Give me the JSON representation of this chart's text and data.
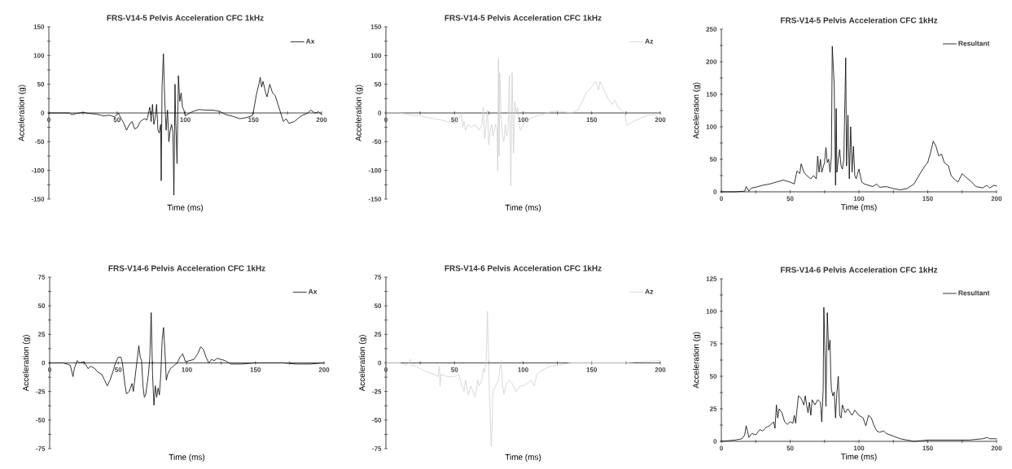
{
  "chart_data": [
    {
      "type": "line",
      "title": "FRS-V14-5 Pelvis Acceleration  CFC 1kHz",
      "xlabel": "Time (ms)",
      "ylabel": "Acceleration (g)",
      "legend": "top right",
      "xlim": [
        0,
        200
      ],
      "xticks": [
        0,
        {
          "value": 25,
          "label": null
        },
        50,
        {
          "value": 75,
          "label": null
        },
        100,
        {
          "value": 125,
          "label": null
        },
        150,
        {
          "value": 175,
          "label": null
        },
        200
      ],
      "ylim": [
        -150,
        150
      ],
      "yticks": [
        -150,
        {
          "value": -125,
          "label": null
        },
        -100,
        {
          "value": -75,
          "label": null
        },
        -50,
        {
          "value": -25,
          "label": null
        },
        0,
        {
          "value": 25,
          "label": null
        },
        50,
        {
          "value": 75,
          "label": null
        },
        100,
        {
          "value": 125,
          "label": null
        },
        150
      ],
      "series": [
        {
          "name": "Ax",
          "color": "#000000",
          "x": [
            0,
            5,
            10,
            15,
            17,
            20,
            25,
            30,
            35,
            40,
            45,
            48,
            50,
            51,
            53,
            55,
            57,
            59,
            61,
            63,
            65,
            67,
            70,
            72,
            74,
            75,
            76,
            77,
            78,
            79,
            80,
            81,
            82,
            82.4,
            83,
            84,
            85,
            86,
            87,
            88,
            89,
            90,
            91,
            91.7,
            92.5,
            93,
            94,
            95,
            96,
            97,
            98,
            99,
            100,
            102,
            105,
            110,
            115,
            120,
            125,
            130,
            135,
            140,
            145,
            149,
            150,
            152,
            154,
            155,
            156,
            157,
            159,
            160,
            162,
            164,
            166,
            168,
            170,
            172,
            174,
            176,
            180,
            185,
            190,
            192,
            195,
            198,
            200
          ],
          "values": [
            0,
            0,
            0,
            0,
            -3,
            -1,
            1,
            -1,
            -2,
            -5,
            -4,
            -7,
            -3,
            0,
            -10,
            -18,
            -30,
            -20,
            -15,
            -28,
            -25,
            -15,
            -10,
            -12,
            10,
            -15,
            15,
            -20,
            -8,
            15,
            -30,
            -35,
            -20,
            -118,
            45,
            103,
            20,
            -30,
            5,
            -50,
            -30,
            -20,
            -35,
            -143,
            50,
            -10,
            -88,
            65,
            20,
            35,
            10,
            5,
            -5,
            -2,
            2,
            6,
            5,
            5,
            3,
            -3,
            -6,
            -10,
            -8,
            -5,
            2,
            30,
            50,
            62,
            45,
            55,
            35,
            28,
            50,
            35,
            30,
            15,
            0,
            -15,
            -10,
            -18,
            -15,
            -5,
            0,
            5,
            0,
            2,
            -3
          ]
        }
      ]
    },
    {
      "type": "line",
      "title": "FRS-V14-5 Pelvis Acceleration  CFC 1kHz",
      "xlabel": "Time (ms)",
      "ylabel": "Acceleration (g)",
      "legend": "top right",
      "xlim": [
        0,
        200
      ],
      "xticks": [
        0,
        {
          "value": 25,
          "label": null
        },
        50,
        {
          "value": 75,
          "label": null
        },
        100,
        {
          "value": 125,
          "label": null
        },
        150,
        {
          "value": 175,
          "label": null
        },
        200
      ],
      "ylim": [
        -150,
        150
      ],
      "yticks": [
        -150,
        {
          "value": -125,
          "label": null
        },
        -100,
        {
          "value": -75,
          "label": null
        },
        -50,
        {
          "value": -25,
          "label": null
        },
        0,
        {
          "value": 25,
          "label": null
        },
        50,
        {
          "value": 75,
          "label": null
        },
        100,
        {
          "value": 125,
          "label": null
        },
        150
      ],
      "series": [
        {
          "name": "Az",
          "color": "#cfcfcf",
          "x": [
            0,
            10,
            15,
            20,
            25,
            30,
            35,
            40,
            45,
            50,
            53,
            55,
            56,
            57,
            58,
            60,
            62,
            65,
            68,
            70,
            71,
            72,
            73,
            74,
            75,
            76,
            77,
            78,
            79,
            80,
            81,
            81.5,
            82,
            82.5,
            83,
            84,
            85,
            86,
            87,
            88,
            89,
            90,
            91,
            92,
            93,
            94,
            95,
            96,
            97,
            98,
            100,
            105,
            110,
            115,
            120,
            125,
            130,
            135,
            140,
            143,
            146,
            150,
            153,
            155,
            156,
            158,
            160,
            162,
            165,
            167,
            169,
            172,
            174,
            175,
            176,
            180,
            185,
            190,
            195,
            200
          ],
          "values": [
            0,
            0,
            -2,
            -5,
            -5,
            -8,
            -10,
            -12,
            -15,
            -18,
            -10,
            -3,
            -25,
            -15,
            -30,
            -20,
            -25,
            -20,
            -30,
            -20,
            10,
            -45,
            -20,
            5,
            -55,
            -30,
            -20,
            -40,
            -30,
            -20,
            -30,
            -100,
            95,
            -75,
            70,
            -10,
            -40,
            -50,
            -20,
            -40,
            -30,
            65,
            -127,
            70,
            -70,
            20,
            0,
            10,
            -20,
            -30,
            -20,
            -10,
            -5,
            -2,
            2,
            4,
            2,
            0,
            5,
            20,
            35,
            45,
            55,
            40,
            55,
            45,
            35,
            25,
            15,
            22,
            10,
            5,
            0,
            -15,
            -22,
            -15,
            -10,
            -5,
            -3,
            -8
          ]
        }
      ]
    },
    {
      "type": "line",
      "title": "FRS-V14-5 Pelvis Acceleration  CFC 1kHz",
      "xlabel": "Time (ms)",
      "ylabel": "Acceleration (g)",
      "legend": "top right",
      "xlim": [
        0,
        200
      ],
      "xticks": [
        0,
        {
          "value": 25,
          "label": null
        },
        50,
        {
          "value": 75,
          "label": null
        },
        100,
        {
          "value": 125,
          "label": null
        },
        150,
        {
          "value": 175,
          "label": null
        },
        200
      ],
      "ylim": [
        0,
        250
      ],
      "yticks": [
        0,
        {
          "value": 25,
          "label": null
        },
        50,
        {
          "value": 75,
          "label": null
        },
        100,
        {
          "value": 125,
          "label": null
        },
        150,
        {
          "value": 175,
          "label": null
        },
        200,
        {
          "value": 225,
          "label": null
        },
        250
      ],
      "series": [
        {
          "name": "Resultant",
          "color": "#000000",
          "x": [
            0,
            10,
            17,
            18,
            19,
            20,
            22,
            25,
            30,
            35,
            40,
            45,
            50,
            53,
            55,
            57,
            58,
            60,
            62,
            65,
            67,
            69,
            70,
            71,
            72,
            73,
            75,
            76,
            77,
            78,
            79,
            80,
            80.6,
            82,
            83,
            83.5,
            84,
            85,
            86,
            87,
            88,
            89,
            90.4,
            91,
            92,
            93,
            94,
            95,
            96,
            97,
            98,
            100,
            102,
            104,
            110,
            113,
            115,
            120,
            125,
            130,
            135,
            140,
            145,
            148,
            150,
            152,
            154,
            156,
            158,
            160,
            162,
            165,
            167,
            170,
            172,
            175,
            178,
            182,
            185,
            190,
            193,
            195,
            198,
            200
          ],
          "values": [
            0,
            0,
            1,
            8,
            5,
            1,
            6,
            7,
            10,
            12,
            15,
            18,
            15,
            12,
            32,
            28,
            43,
            30,
            25,
            20,
            25,
            20,
            55,
            30,
            50,
            30,
            45,
            68,
            45,
            50,
            30,
            55,
            224,
            165,
            10,
            128,
            30,
            50,
            65,
            40,
            35,
            50,
            206,
            40,
            118,
            20,
            100,
            30,
            70,
            25,
            20,
            35,
            15,
            12,
            8,
            12,
            7,
            8,
            5,
            3,
            5,
            12,
            30,
            40,
            45,
            60,
            78,
            70,
            55,
            58,
            45,
            40,
            25,
            18,
            15,
            28,
            22,
            15,
            8,
            6,
            10,
            6,
            10,
            9
          ]
        }
      ]
    },
    {
      "type": "line",
      "title": "FRS-V14-6 Pelvis Acceleration  CFC 1kHz",
      "xlabel": "Time (ms)",
      "ylabel": "Acceleration (g)",
      "legend": "top right",
      "xlim": [
        0,
        200
      ],
      "xticks": [
        0,
        {
          "value": 25,
          "label": null
        },
        50,
        {
          "value": 75,
          "label": null
        },
        100,
        {
          "value": 125,
          "label": null
        },
        150,
        {
          "value": 175,
          "label": null
        },
        200
      ],
      "ylim": [
        -75,
        75
      ],
      "yticks": [
        -75,
        {
          "value": -62.5,
          "label": null
        },
        -50,
        {
          "value": -37.5,
          "label": null
        },
        -25,
        {
          "value": -12.5,
          "label": null
        },
        0,
        {
          "value": 12.5,
          "label": null
        },
        25,
        {
          "value": 37.5,
          "label": null
        },
        50,
        {
          "value": 62.5,
          "label": null
        },
        75
      ],
      "series": [
        {
          "name": "Ax",
          "color": "#000000",
          "x": [
            0,
            5,
            10,
            15,
            17,
            18,
            20,
            22,
            25,
            28,
            30,
            33,
            35,
            38,
            40,
            42,
            44,
            46,
            48,
            50,
            52,
            53,
            55,
            56,
            58,
            60,
            61,
            63,
            65,
            66,
            67,
            68,
            69,
            70,
            72,
            73,
            74,
            75,
            76,
            77,
            78,
            79,
            80,
            81,
            82,
            83,
            84,
            85,
            86,
            88,
            90,
            93,
            95,
            97,
            99,
            102,
            105,
            108,
            110,
            112,
            114,
            116,
            118,
            120,
            122,
            125,
            128,
            132,
            140,
            150,
            160,
            170,
            180,
            190,
            200
          ],
          "values": [
            0,
            0,
            0,
            -2,
            -12,
            -5,
            2,
            0,
            1,
            -5,
            -3,
            -5,
            -8,
            -10,
            -15,
            -20,
            -15,
            -8,
            0,
            5,
            5,
            0,
            -20,
            -27,
            -25,
            -18,
            -25,
            -5,
            15,
            5,
            2,
            -20,
            -30,
            -28,
            -10,
            5,
            44,
            -10,
            -37,
            -20,
            -30,
            -22,
            -28,
            -10,
            20,
            31,
            10,
            -15,
            -10,
            -5,
            -3,
            0,
            5,
            8,
            1,
            2,
            3,
            8,
            14,
            12,
            5,
            0,
            3,
            2,
            4,
            3,
            2,
            -1,
            -1,
            0,
            0,
            0,
            -1,
            -1,
            0
          ]
        }
      ]
    },
    {
      "type": "line",
      "title": "FRS-V14-6 Pelvis Acceleration  CFC 1kHz",
      "xlabel": "Time (ms)",
      "ylabel": "Acceleration (g)",
      "legend": "top right",
      "xlim": [
        0,
        200
      ],
      "xticks": [
        0,
        {
          "value": 25,
          "label": null
        },
        50,
        {
          "value": 75,
          "label": null
        },
        100,
        {
          "value": 125,
          "label": null
        },
        150,
        {
          "value": 175,
          "label": null
        },
        200
      ],
      "ylim": [
        -75,
        75
      ],
      "yticks": [
        -75,
        {
          "value": -62.5,
          "label": null
        },
        -50,
        {
          "value": -37.5,
          "label": null
        },
        -25,
        {
          "value": -12.5,
          "label": null
        },
        0,
        {
          "value": 12.5,
          "label": null
        },
        25,
        {
          "value": 37.5,
          "label": null
        },
        50,
        {
          "value": 62.5,
          "label": null
        },
        75
      ],
      "series": [
        {
          "name": "Az",
          "color": "#cfcfcf",
          "x": [
            0,
            10,
            15,
            18,
            19,
            20,
            25,
            30,
            35,
            38,
            39,
            39.5,
            40,
            45,
            50,
            53,
            55,
            57,
            58,
            60,
            62,
            65,
            67,
            68,
            70,
            71,
            72,
            73,
            74,
            75,
            76.8,
            77.5,
            78,
            80,
            82,
            84,
            85,
            86,
            88,
            90,
            92,
            95,
            98,
            100,
            103,
            106,
            108,
            110,
            113,
            116,
            120,
            125,
            130,
            135,
            150,
            175,
            185,
            200
          ],
          "values": [
            0,
            0,
            -2,
            3,
            -3,
            -2,
            -5,
            -8,
            -10,
            -12,
            -3,
            -20,
            -10,
            -12,
            -12,
            -10,
            -18,
            -25,
            -15,
            -28,
            -20,
            -30,
            -15,
            -20,
            -15,
            -5,
            -8,
            0,
            45,
            -10,
            -73,
            -50,
            -25,
            -20,
            -15,
            2,
            -20,
            -27,
            -18,
            -15,
            -18,
            -25,
            -20,
            -20,
            -18,
            -15,
            -20,
            -10,
            -7,
            -5,
            -3,
            -2,
            -1,
            0,
            0,
            0,
            1,
            2
          ]
        }
      ]
    },
    {
      "type": "line",
      "title": "FRS-V14-6 Pelvis Acceleration  CFC 1kHz",
      "xlabel": "Time (ms)",
      "ylabel": "Acceleration (g)",
      "legend": "top right",
      "xlim": [
        0,
        200
      ],
      "xticks": [
        0,
        {
          "value": 25,
          "label": null
        },
        50,
        {
          "value": 75,
          "label": null
        },
        100,
        {
          "value": 125,
          "label": null
        },
        150,
        {
          "value": 175,
          "label": null
        },
        200
      ],
      "ylim": [
        0,
        125
      ],
      "yticks": [
        0,
        {
          "value": 12.5,
          "label": null
        },
        25,
        {
          "value": 37.5,
          "label": null
        },
        50,
        {
          "value": 62.5,
          "label": null
        },
        75,
        {
          "value": 87.5,
          "label": null
        },
        100,
        {
          "value": 112.5,
          "label": null
        },
        125
      ],
      "series": [
        {
          "name": "Resultant",
          "color": "#000000",
          "x": [
            0,
            10,
            15,
            17,
            18,
            19,
            20,
            22,
            25,
            28,
            30,
            33,
            35,
            38,
            39,
            40,
            41,
            42,
            44,
            46,
            48,
            50,
            52,
            53,
            54,
            56,
            58,
            60,
            61,
            62,
            63,
            64,
            65,
            66,
            68,
            70,
            72,
            73,
            74,
            74.5,
            75.5,
            76,
            77,
            78,
            79,
            79.5,
            80,
            81,
            82,
            83,
            84,
            85,
            86,
            87,
            88,
            90,
            92,
            95,
            97,
            100,
            103,
            105,
            107,
            109,
            111,
            113,
            115,
            118,
            120,
            125,
            130,
            135,
            140,
            150,
            160,
            170,
            180,
            190,
            193,
            195,
            200
          ],
          "values": [
            0,
            1,
            2,
            5,
            12,
            8,
            3,
            6,
            5,
            9,
            8,
            11,
            12,
            15,
            10,
            28,
            18,
            25,
            22,
            15,
            13,
            15,
            14,
            20,
            14,
            35,
            33,
            28,
            35,
            28,
            22,
            30,
            20,
            32,
            28,
            32,
            30,
            15,
            40,
            103,
            60,
            27,
            99,
            70,
            78,
            50,
            40,
            35,
            38,
            18,
            38,
            50,
            20,
            18,
            28,
            22,
            25,
            20,
            24,
            20,
            18,
            12,
            20,
            18,
            12,
            8,
            7,
            8,
            6,
            4,
            2,
            1,
            0,
            1,
            1,
            1,
            1,
            2,
            3,
            2,
            2
          ]
        }
      ]
    }
  ]
}
